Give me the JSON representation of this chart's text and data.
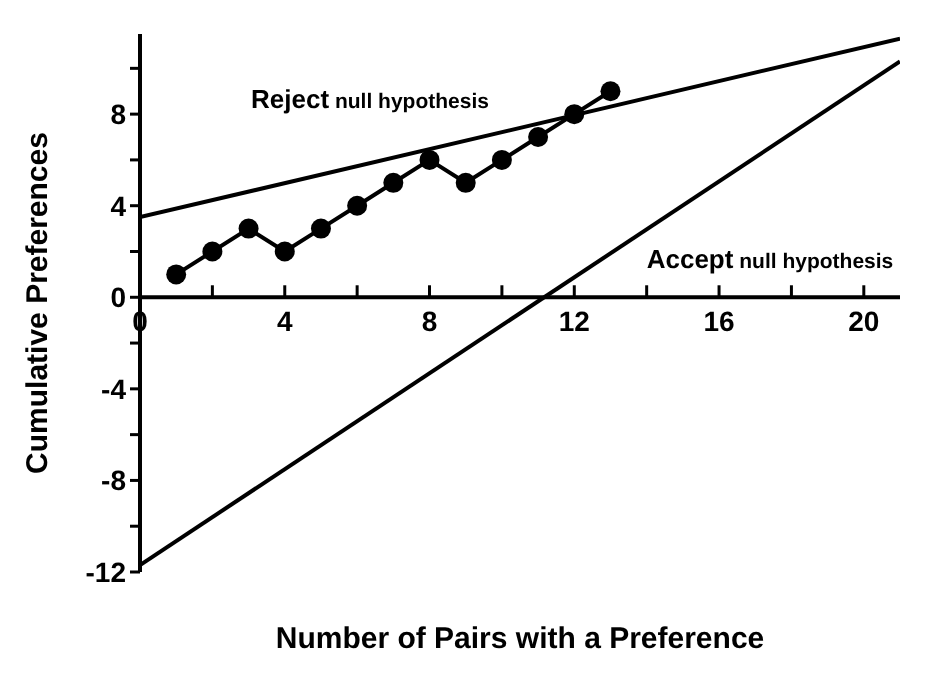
{
  "chart_data": {
    "type": "line",
    "xlabel": "Number of Pairs with a Preference",
    "ylabel": "Cumulative Preferences",
    "xlim": [
      0,
      21
    ],
    "ylim": [
      -12,
      11.5
    ],
    "xticks": [
      0,
      {
        "value": 2,
        "label": null
      },
      4,
      {
        "value": 6,
        "label": null
      },
      8,
      {
        "value": 10,
        "label": null
      },
      12,
      {
        "value": 14,
        "label": null
      },
      16,
      {
        "value": 18,
        "label": null
      },
      20
    ],
    "yticks": [
      -12,
      {
        "value": -10,
        "label": null
      },
      -8,
      {
        "value": -6,
        "label": null
      },
      -4,
      {
        "value": -2,
        "label": null
      },
      0,
      {
        "value": 2,
        "label": null
      },
      4,
      {
        "value": 6,
        "label": null
      },
      8,
      {
        "value": 10,
        "label": null
      }
    ],
    "series": [
      {
        "color": "#000000",
        "marker": "circle",
        "x": [
          1,
          2,
          3,
          4,
          5,
          6,
          7,
          8,
          9,
          10,
          11,
          12,
          13
        ],
        "values": [
          1,
          2,
          3,
          2,
          3,
          4,
          5,
          6,
          5,
          6,
          7,
          8,
          9
        ]
      },
      {
        "color": "#000000",
        "marker": "none",
        "x": [
          0,
          21
        ],
        "values": [
          3.5,
          11.3
        ]
      },
      {
        "color": "#000000",
        "marker": "none",
        "x": [
          0,
          21
        ],
        "values": [
          -11.7,
          10.3
        ]
      }
    ],
    "annotations": [
      "Reject null hypothesis",
      "Accept null hypothesis"
    ]
  }
}
